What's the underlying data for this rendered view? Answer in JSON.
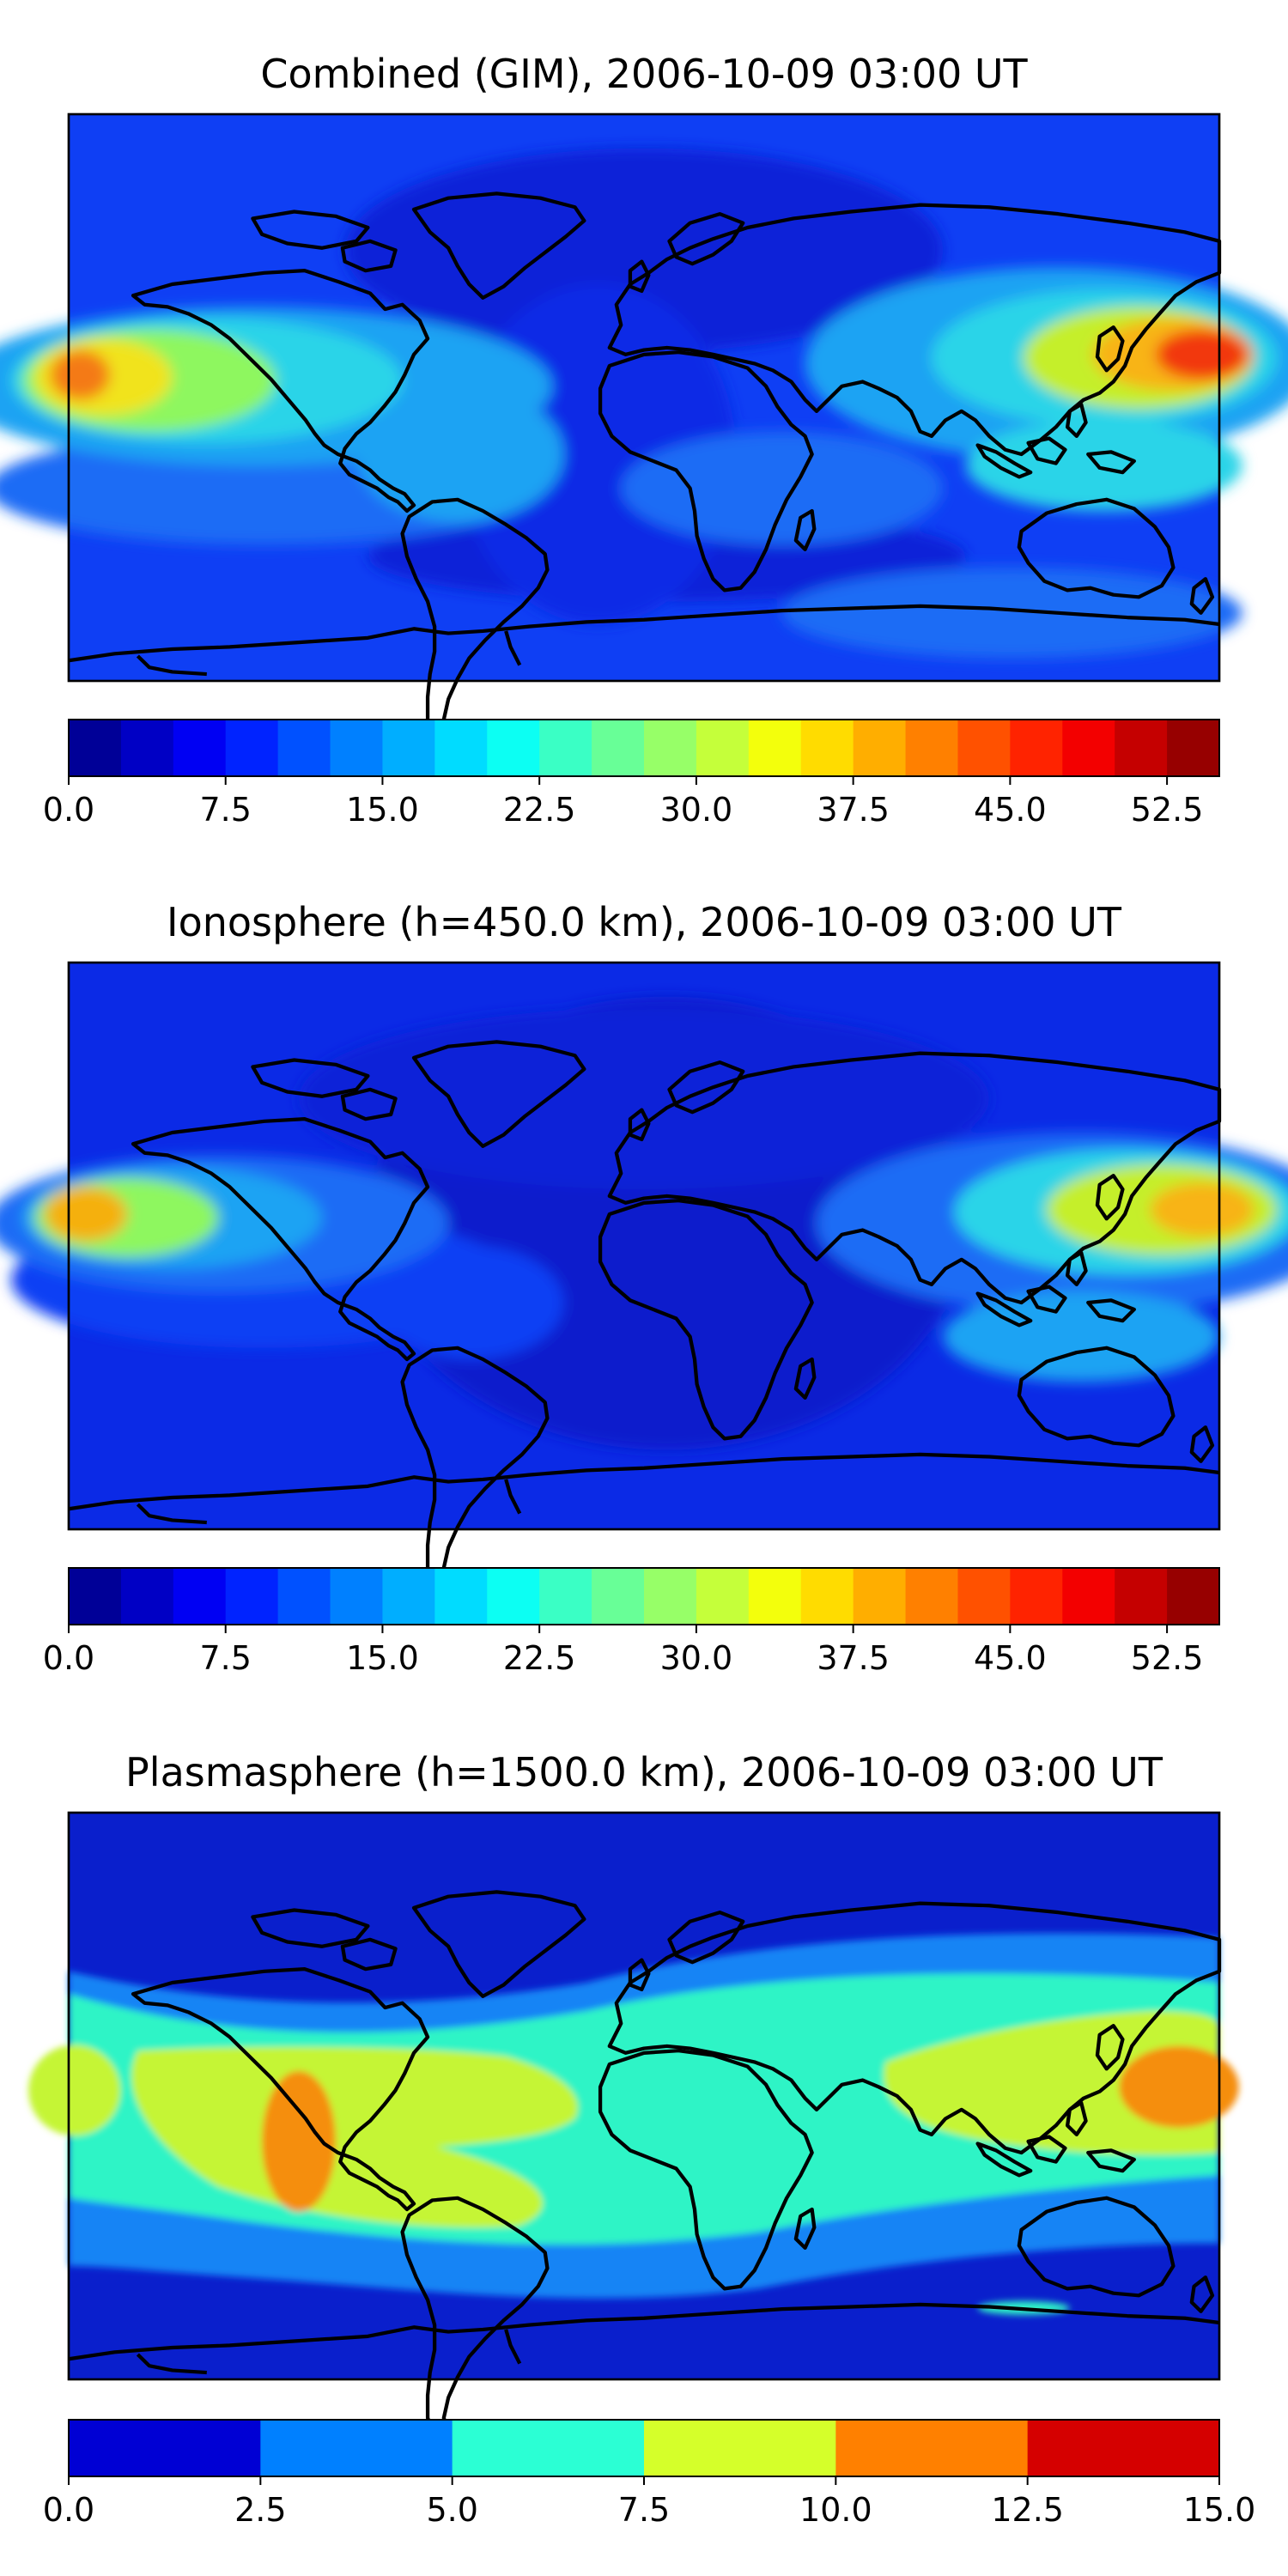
{
  "chart_data": [
    {
      "type": "heatmap",
      "title": "Combined (GIM), 2006-10-09 03:00 UT",
      "map": "world coastlines, equirectangular",
      "colormap": "jet",
      "colorbar_range": [
        0.0,
        55.0
      ],
      "colorbar_levels": 22,
      "colorbar_ticks": [
        "0.0",
        "7.5",
        "15.0",
        "22.5",
        "30.0",
        "37.5",
        "45.0",
        "52.5"
      ],
      "features": [
        {
          "name": "peak-east-pacific",
          "lon": -175,
          "lat": 3,
          "value": 47
        },
        {
          "name": "peak-west-pacific",
          "lon": 175,
          "lat": 5,
          "value": 48
        },
        {
          "name": "band-south-atlantic-low",
          "lon": -20,
          "lat": -55,
          "value": 4
        },
        {
          "name": "north-atlantic-low",
          "lon": -25,
          "lat": 55,
          "value": 5
        }
      ]
    },
    {
      "type": "heatmap",
      "title": "Ionosphere  (h=450.0 km), 2006-10-09 03:00 UT",
      "map": "world coastlines, equirectangular",
      "colormap": "jet",
      "colorbar_range": [
        0.0,
        55.0
      ],
      "colorbar_levels": 22,
      "colorbar_ticks": [
        "0.0",
        "7.5",
        "15.0",
        "22.5",
        "30.0",
        "37.5",
        "45.0",
        "52.5"
      ],
      "features": [
        {
          "name": "peak-east-pacific",
          "lon": -178,
          "lat": 3,
          "value": 38
        },
        {
          "name": "peak-west-pacific",
          "lon": 178,
          "lat": 5,
          "value": 40
        },
        {
          "name": "africa-atlantic-low",
          "lon": 10,
          "lat": 5,
          "value": 2
        }
      ]
    },
    {
      "type": "heatmap",
      "title": "Plasmasphere (h=1500.0 km), 2006-10-09 03:00 UT",
      "map": "world coastlines, equirectangular",
      "colormap": "jet",
      "colorbar_range": [
        0.0,
        15.0
      ],
      "colorbar_levels": 6,
      "colorbar_ticks": [
        "0.0",
        "2.5",
        "5.0",
        "7.5",
        "10.0",
        "12.5",
        "15.0"
      ],
      "features": [
        {
          "name": "peak-south-america-west",
          "lon": -95,
          "lat": -10,
          "value": 11
        },
        {
          "name": "peak-west-pacific",
          "lon": 160,
          "lat": 10,
          "value": 11
        }
      ]
    }
  ]
}
